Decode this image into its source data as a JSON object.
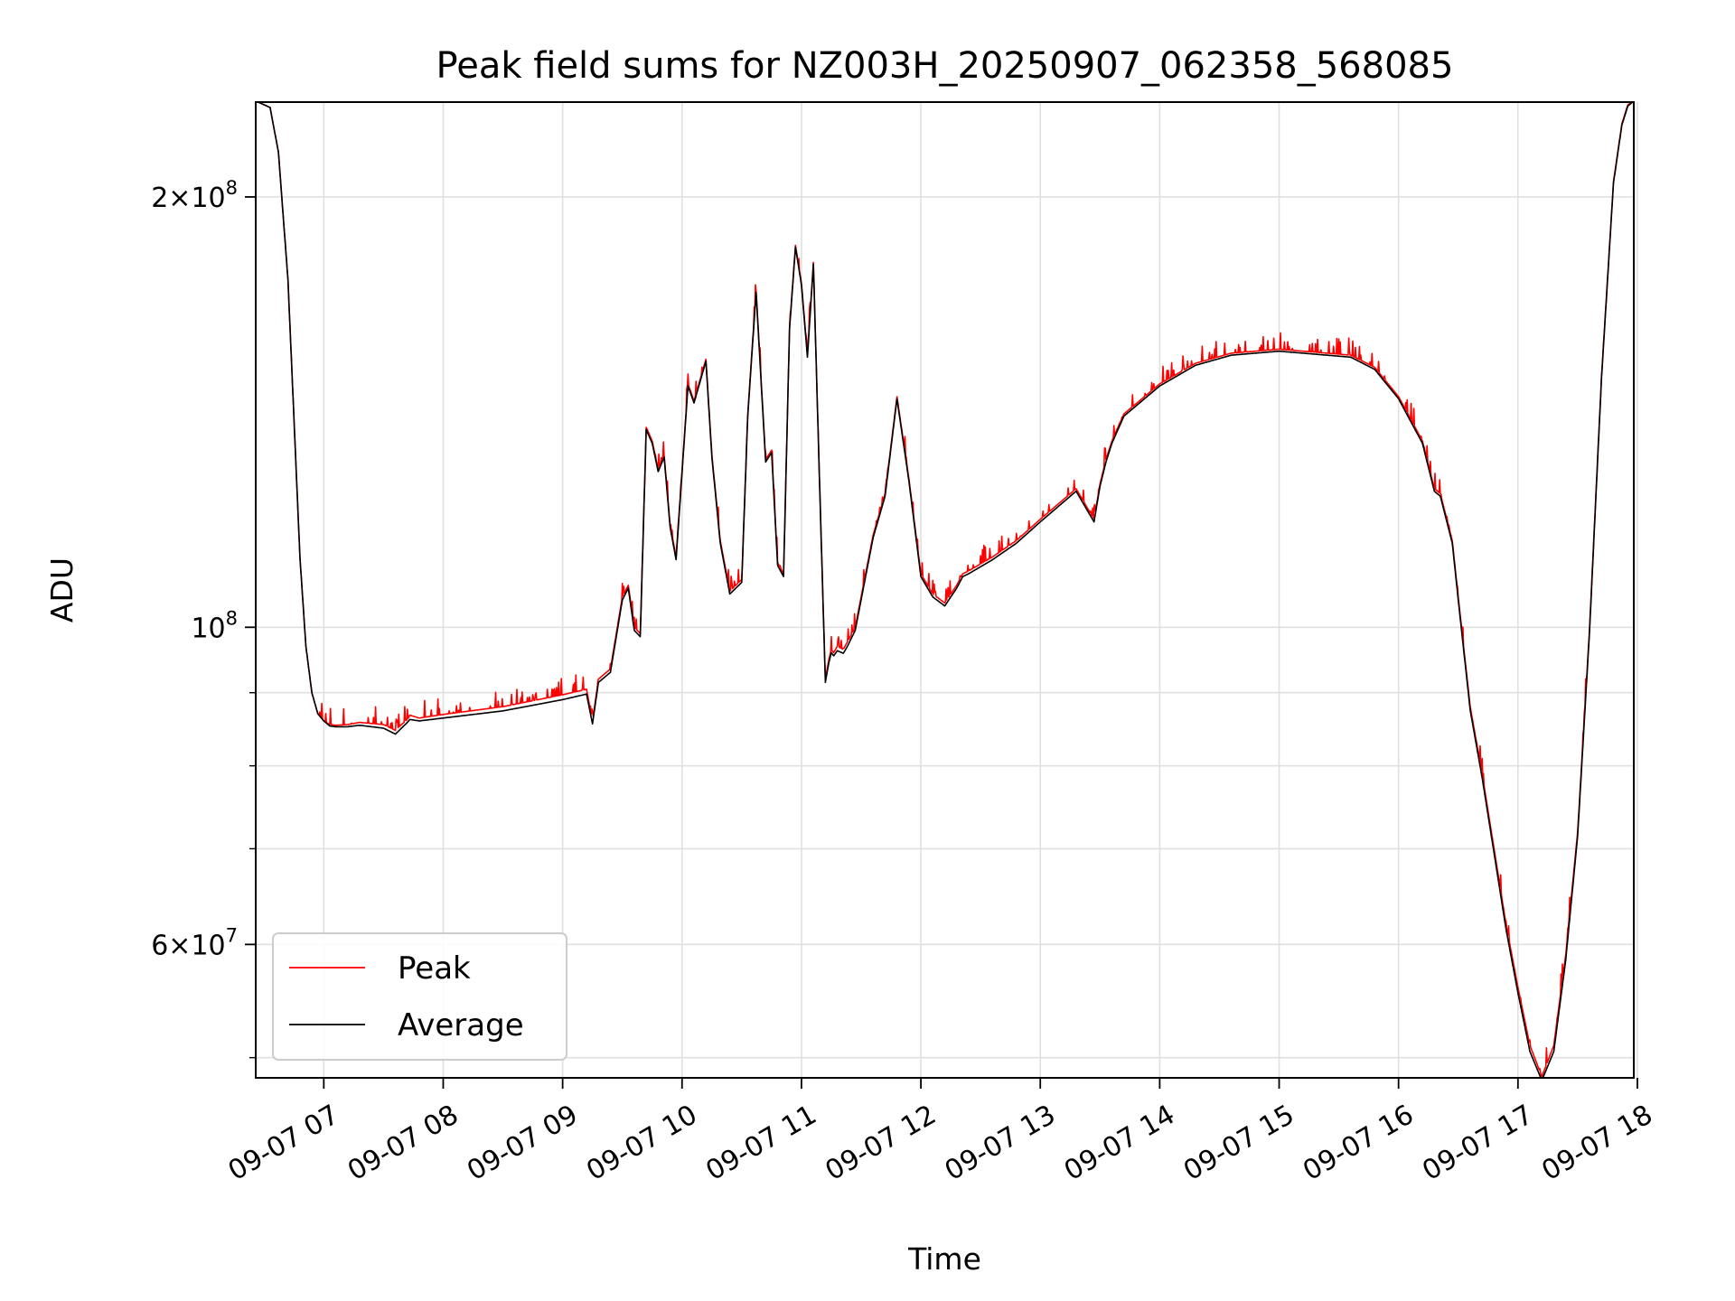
{
  "chart_data": {
    "type": "line",
    "title": "Peak field sums for NZ003H_20250907_062358_568085",
    "xlabel": "Time",
    "ylabel": "ADU",
    "yscale": "log",
    "grid": true,
    "legend_position": "lower-left",
    "x_unit": "hours (time of day on 09-07)",
    "xlim": [
      6.43,
      17.97
    ],
    "ylim": [
      48400000,
      233000000
    ],
    "x_ticks": [
      {
        "value": 7,
        "label": "09-07 07"
      },
      {
        "value": 8,
        "label": "09-07 08"
      },
      {
        "value": 9,
        "label": "09-07 09"
      },
      {
        "value": 10,
        "label": "09-07 10"
      },
      {
        "value": 11,
        "label": "09-07 11"
      },
      {
        "value": 12,
        "label": "09-07 12"
      },
      {
        "value": 13,
        "label": "09-07 13"
      },
      {
        "value": 14,
        "label": "09-07 14"
      },
      {
        "value": 15,
        "label": "09-07 15"
      },
      {
        "value": 16,
        "label": "09-07 16"
      },
      {
        "value": 17,
        "label": "09-07 17"
      },
      {
        "value": 18,
        "label": "09-07 18"
      }
    ],
    "y_major_ticks": [
      {
        "value": 100000000,
        "base": "10",
        "exp": "8"
      },
      {
        "value": 200000000,
        "base": "2×10",
        "exp": "8"
      },
      {
        "value": 60000000,
        "base": "6×10",
        "exp": "7"
      }
    ],
    "y_minor_ticks": [
      50000000,
      70000000,
      80000000,
      90000000
    ],
    "series": [
      {
        "name": "Peak",
        "color": "#ff0000",
        "jitter": 0.012,
        "x": [
          6.45,
          6.55,
          6.62,
          6.7,
          6.75,
          6.8,
          6.85,
          6.9,
          6.95,
          7.0,
          7.05,
          7.1,
          7.2,
          7.3,
          7.5,
          7.6,
          7.65,
          7.7,
          7.72,
          7.8,
          8.0,
          8.5,
          9.0,
          9.2,
          9.25,
          9.3,
          9.4,
          9.5,
          9.55,
          9.6,
          9.65,
          9.7,
          9.75,
          9.8,
          9.85,
          9.9,
          9.95,
          10.05,
          10.1,
          10.2,
          10.25,
          10.32,
          10.4,
          10.5,
          10.55,
          10.62,
          10.7,
          10.75,
          10.8,
          10.85,
          10.9,
          10.95,
          11.0,
          11.05,
          11.1,
          11.15,
          11.2,
          11.23,
          11.25,
          11.27,
          11.3,
          11.35,
          11.38,
          11.45,
          11.6,
          11.7,
          11.8,
          11.9,
          12.0,
          12.1,
          12.2,
          12.3,
          12.35,
          12.4,
          12.6,
          12.8,
          13.0,
          13.3,
          13.45,
          13.5,
          13.55,
          13.6,
          13.7,
          14.0,
          14.3,
          14.6,
          15.0,
          15.2,
          15.6,
          15.8,
          16.0,
          16.2,
          16.3,
          16.35,
          16.45,
          16.5,
          16.6,
          16.7,
          16.8,
          16.9,
          17.0,
          17.1,
          17.2,
          17.3,
          17.4,
          17.5,
          17.6,
          17.7,
          17.8,
          17.87,
          17.92,
          17.96
        ],
        "y": [
          233000000,
          231000000,
          215000000,
          175000000,
          140000000,
          112000000,
          97000000,
          90000000,
          87000000,
          86000000,
          85500000,
          85400000,
          85500000,
          85800000,
          85500000,
          84700000,
          85500000,
          86200000,
          86800000,
          86400000,
          86900000,
          88000000,
          89700000,
          90500000,
          86000000,
          92000000,
          93500000,
          105000000,
          107000000,
          100000000,
          99000000,
          138000000,
          135000000,
          129000000,
          132000000,
          118000000,
          112000000,
          148000000,
          144000000,
          154000000,
          132000000,
          115000000,
          106000000,
          108000000,
          141000000,
          172000000,
          131000000,
          133000000,
          111000000,
          109000000,
          162000000,
          185000000,
          174000000,
          155000000,
          180000000,
          128000000,
          92000000,
          95000000,
          96500000,
          96000000,
          97000000,
          96500000,
          97500000,
          100000000,
          116000000,
          124000000,
          145000000,
          127000000,
          109000000,
          105500000,
          104000000,
          107000000,
          109000000,
          109500000,
          112000000,
          115000000,
          119000000,
          125000000,
          119000000,
          126000000,
          131000000,
          135000000,
          141000000,
          148000000,
          153000000,
          155500000,
          156500000,
          156000000,
          155000000,
          152000000,
          145000000,
          135000000,
          125000000,
          124000000,
          115000000,
          105000000,
          88000000,
          79000000,
          70000000,
          62000000,
          56000000,
          51000000,
          48500000,
          51000000,
          59000000,
          72000000,
          100000000,
          150000000,
          205000000,
          225000000,
          232000000,
          233000000
        ]
      },
      {
        "name": "Average",
        "color": "#000000",
        "jitter": 0,
        "x": [
          6.45,
          6.55,
          6.62,
          6.7,
          6.75,
          6.8,
          6.85,
          6.9,
          6.95,
          7.0,
          7.05,
          7.1,
          7.2,
          7.3,
          7.5,
          7.6,
          7.65,
          7.7,
          7.72,
          7.8,
          8.0,
          8.5,
          9.0,
          9.2,
          9.25,
          9.3,
          9.4,
          9.5,
          9.55,
          9.6,
          9.65,
          9.7,
          9.75,
          9.8,
          9.85,
          9.9,
          9.95,
          10.05,
          10.1,
          10.2,
          10.25,
          10.32,
          10.4,
          10.5,
          10.55,
          10.62,
          10.7,
          10.75,
          10.8,
          10.85,
          10.9,
          10.95,
          11.0,
          11.05,
          11.1,
          11.15,
          11.2,
          11.23,
          11.25,
          11.27,
          11.3,
          11.35,
          11.38,
          11.45,
          11.6,
          11.7,
          11.8,
          11.9,
          12.0,
          12.1,
          12.2,
          12.3,
          12.35,
          12.4,
          12.6,
          12.8,
          13.0,
          13.3,
          13.45,
          13.5,
          13.55,
          13.6,
          13.7,
          14.0,
          14.3,
          14.6,
          15.0,
          15.2,
          15.6,
          15.8,
          16.0,
          16.2,
          16.3,
          16.35,
          16.45,
          16.5,
          16.6,
          16.7,
          16.8,
          16.9,
          17.0,
          17.1,
          17.2,
          17.3,
          17.4,
          17.5,
          17.6,
          17.7,
          17.8,
          17.87,
          17.92,
          17.96
        ],
        "y": [
          233000000,
          231000000,
          215000000,
          175000000,
          140000000,
          112000000,
          97000000,
          90000000,
          87000000,
          86000000,
          85300000,
          85200000,
          85200000,
          85400000,
          85000000,
          84200000,
          85000000,
          85800000,
          86200000,
          86000000,
          86400000,
          87400000,
          89000000,
          89800000,
          85600000,
          91500000,
          93000000,
          104500000,
          106500000,
          99500000,
          98500000,
          137500000,
          134500000,
          128500000,
          131500000,
          117500000,
          111500000,
          147500000,
          143500000,
          153500000,
          131500000,
          114500000,
          105500000,
          107500000,
          140500000,
          171500000,
          130500000,
          132500000,
          110500000,
          108500000,
          161500000,
          184500000,
          173500000,
          154500000,
          179500000,
          127500000,
          91500000,
          94500000,
          96000000,
          95500000,
          96300000,
          95900000,
          96800000,
          99500000,
          115500000,
          123500000,
          144500000,
          126500000,
          108500000,
          105000000,
          103500000,
          106500000,
          108500000,
          109000000,
          111500000,
          114500000,
          118500000,
          124500000,
          118500000,
          125500000,
          130500000,
          134500000,
          140500000,
          147500000,
          152500000,
          155000000,
          156000000,
          155500000,
          154500000,
          151500000,
          144500000,
          134500000,
          124500000,
          123500000,
          114500000,
          104500000,
          87500000,
          78500000,
          69500000,
          61500000,
          55500000,
          50500000,
          48200000,
          50500000,
          58500000,
          71500000,
          99500000,
          149500000,
          204500000,
          224500000,
          231500000,
          233000000
        ]
      }
    ]
  }
}
